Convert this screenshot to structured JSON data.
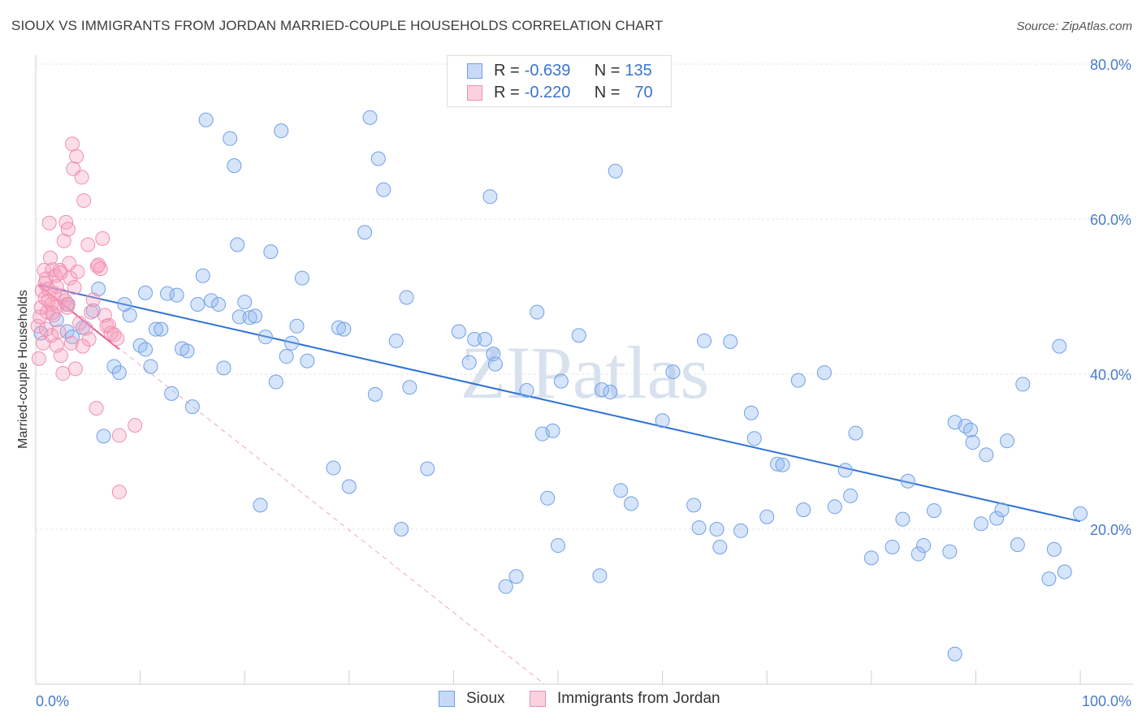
{
  "title": "SIOUX VS IMMIGRANTS FROM JORDAN MARRIED-COUPLE HOUSEHOLDS CORRELATION CHART",
  "source": "Source: ZipAtlas.com",
  "watermark": "ZIPatlas",
  "colors": {
    "sioux": "#6fa0e8",
    "jordan": "#f08fb0",
    "sioux_line": "#2f72d4",
    "jordan_line": "#e8608f",
    "tick_text": "#4a7bc8"
  },
  "legend": {
    "rows": [
      {
        "r_label": "R =",
        "r_value": "-0.639",
        "n_label": "N =",
        "n_value": "135"
      },
      {
        "r_label": "R =",
        "r_value": "-0.220",
        "n_label": "N =",
        "n_value": "70"
      }
    ]
  },
  "bottom_legend": {
    "sioux": "Sioux",
    "jordan": "Immigrants from Jordan"
  },
  "chart_data": {
    "type": "scatter",
    "xlabel": "",
    "ylabel": "Married-couple Households",
    "xlim": [
      0,
      100
    ],
    "ylim": [
      0,
      83
    ],
    "x_tick_labels": [
      "0.0%",
      "100.0%"
    ],
    "y_ticks": [
      20,
      40,
      60,
      80
    ],
    "y_tick_labels": [
      "20.0%",
      "40.0%",
      "60.0%",
      "80.0%"
    ],
    "grid": true,
    "series": [
      {
        "name": "Sioux",
        "r": -0.639,
        "n": 135,
        "trend": {
          "x": [
            0.3,
            100
          ],
          "y": [
            51.5,
            21.0
          ]
        },
        "points": [
          [
            0.5,
            45.3
          ],
          [
            2,
            47
          ],
          [
            3,
            45.5
          ],
          [
            3.5,
            44.8
          ],
          [
            4.5,
            46
          ],
          [
            3,
            49
          ],
          [
            5.5,
            48.2
          ],
          [
            6,
            51
          ],
          [
            6.5,
            32
          ],
          [
            7.5,
            41
          ],
          [
            8,
            40.2
          ],
          [
            8.5,
            49
          ],
          [
            9,
            47.6
          ],
          [
            10,
            43.7
          ],
          [
            10.5,
            43.2
          ],
          [
            11,
            41
          ],
          [
            10.5,
            50.5
          ],
          [
            11.5,
            45.8
          ],
          [
            12,
            45.8
          ],
          [
            12.6,
            50.4
          ],
          [
            13,
            37.5
          ],
          [
            13.5,
            50.2
          ],
          [
            14,
            43.3
          ],
          [
            14.5,
            43
          ],
          [
            15,
            35.8
          ],
          [
            15.5,
            49
          ],
          [
            16,
            52.7
          ],
          [
            16.3,
            72.8
          ],
          [
            16.8,
            49.5
          ],
          [
            17.5,
            49
          ],
          [
            18,
            40.8
          ],
          [
            18.6,
            70.4
          ],
          [
            19,
            66.9
          ],
          [
            19.3,
            56.7
          ],
          [
            19.5,
            47.4
          ],
          [
            20,
            49.3
          ],
          [
            20.5,
            47.3
          ],
          [
            21,
            47.5
          ],
          [
            21.5,
            23.1
          ],
          [
            22,
            44.8
          ],
          [
            22.5,
            55.8
          ],
          [
            23,
            39
          ],
          [
            23.5,
            71.4
          ],
          [
            24,
            42.3
          ],
          [
            24.5,
            44
          ],
          [
            25,
            46.2
          ],
          [
            25.5,
            52.4
          ],
          [
            26,
            41.7
          ],
          [
            28.5,
            27.9
          ],
          [
            29,
            46
          ],
          [
            29.5,
            45.8
          ],
          [
            30,
            25.5
          ],
          [
            31.5,
            58.3
          ],
          [
            32,
            73.1
          ],
          [
            32.5,
            37.4
          ],
          [
            32.8,
            67.8
          ],
          [
            33.3,
            63.8
          ],
          [
            34.5,
            44.3
          ],
          [
            35,
            20
          ],
          [
            35.5,
            49.9
          ],
          [
            35.8,
            38.3
          ],
          [
            37.5,
            27.8
          ],
          [
            40.5,
            45.5
          ],
          [
            41.5,
            41.5
          ],
          [
            42,
            44.5
          ],
          [
            43,
            44.5
          ],
          [
            43.5,
            62.9
          ],
          [
            43.8,
            42.6
          ],
          [
            44,
            41.3
          ],
          [
            45,
            12.6
          ],
          [
            46,
            13.9
          ],
          [
            47,
            37.9
          ],
          [
            48,
            48
          ],
          [
            48.5,
            32.3
          ],
          [
            49,
            24
          ],
          [
            49.5,
            32.7
          ],
          [
            50,
            17.9
          ],
          [
            50.3,
            39.1
          ],
          [
            52,
            45
          ],
          [
            54,
            14
          ],
          [
            54.2,
            38
          ],
          [
            55,
            37.7
          ],
          [
            55.5,
            66.2
          ],
          [
            56,
            25
          ],
          [
            57,
            23.3
          ],
          [
            60,
            34
          ],
          [
            61,
            40.3
          ],
          [
            63,
            23.1
          ],
          [
            63.5,
            20.2
          ],
          [
            64,
            44.3
          ],
          [
            65.2,
            20
          ],
          [
            65.5,
            17.7
          ],
          [
            66.5,
            44.2
          ],
          [
            67.5,
            19.8
          ],
          [
            68.5,
            35
          ],
          [
            68.8,
            31.7
          ],
          [
            70,
            21.6
          ],
          [
            71,
            28.4
          ],
          [
            71.5,
            28.3
          ],
          [
            73,
            39.2
          ],
          [
            73.5,
            22.5
          ],
          [
            75.5,
            40.2
          ],
          [
            76.5,
            22.9
          ],
          [
            77.5,
            27.6
          ],
          [
            78,
            24.3
          ],
          [
            78.5,
            32.4
          ],
          [
            80,
            16.3
          ],
          [
            82,
            17.7
          ],
          [
            83,
            21.3
          ],
          [
            83.5,
            26.2
          ],
          [
            84.5,
            16.8
          ],
          [
            85,
            17.9
          ],
          [
            86,
            22.4
          ],
          [
            87.5,
            17.1
          ],
          [
            88,
            3.9
          ],
          [
            88,
            33.8
          ],
          [
            89,
            33.3
          ],
          [
            89.5,
            32.8
          ],
          [
            89.7,
            31.2
          ],
          [
            90.5,
            20.7
          ],
          [
            91,
            29.6
          ],
          [
            92,
            21.4
          ],
          [
            92.5,
            22.5
          ],
          [
            93,
            31.4
          ],
          [
            94,
            18
          ],
          [
            94.5,
            38.7
          ],
          [
            97,
            13.6
          ],
          [
            97.5,
            17.4
          ],
          [
            98,
            43.6
          ],
          [
            98.5,
            14.5
          ],
          [
            100,
            22
          ]
        ]
      },
      {
        "name": "Immigrants from Jordan",
        "r": -0.22,
        "n": 70,
        "trend": {
          "x": [
            0.3,
            8
          ],
          "y": [
            51.5,
            43.2
          ]
        },
        "trend_dashed": {
          "x": [
            0.3,
            48.7
          ],
          "y": [
            51.5,
            0
          ]
        },
        "points": [
          [
            0.2,
            46.2
          ],
          [
            0.3,
            42
          ],
          [
            0.4,
            47.4
          ],
          [
            0.5,
            48.6
          ],
          [
            0.6,
            50.8
          ],
          [
            0.7,
            44
          ],
          [
            0.8,
            53.4
          ],
          [
            0.9,
            49.8
          ],
          [
            1,
            52.3
          ],
          [
            1,
            45.8
          ],
          [
            1.1,
            48
          ],
          [
            1.2,
            51
          ],
          [
            1.3,
            59.5
          ],
          [
            1.4,
            55
          ],
          [
            1.5,
            49
          ],
          [
            1.6,
            53.5
          ],
          [
            1.7,
            47.6
          ],
          [
            1.8,
            50.4
          ],
          [
            1.9,
            52.7
          ],
          [
            2,
            51.3
          ],
          [
            2.1,
            48.8
          ],
          [
            2.2,
            45.5
          ],
          [
            2.3,
            53.4
          ],
          [
            2.4,
            42.4
          ],
          [
            2.5,
            50.1
          ],
          [
            2.6,
            40.1
          ],
          [
            2.7,
            57.2
          ],
          [
            2.8,
            49.5
          ],
          [
            2.9,
            59.6
          ],
          [
            3,
            48.6
          ],
          [
            3.1,
            58.7
          ],
          [
            3.2,
            54.3
          ],
          [
            3.3,
            52.4
          ],
          [
            3.4,
            44
          ],
          [
            3.5,
            69.7
          ],
          [
            3.6,
            66.5
          ],
          [
            3.7,
            51.2
          ],
          [
            3.8,
            40.7
          ],
          [
            3.9,
            68.1
          ],
          [
            4,
            53.2
          ],
          [
            4.2,
            46.6
          ],
          [
            4.4,
            65.4
          ],
          [
            4.6,
            62.4
          ],
          [
            4.8,
            45.9
          ],
          [
            5,
            56.7
          ],
          [
            5.1,
            44.5
          ],
          [
            5.3,
            48
          ],
          [
            5.5,
            49.6
          ],
          [
            5.8,
            35.6
          ],
          [
            5.9,
            53.9
          ],
          [
            6,
            54.1
          ],
          [
            6.2,
            53.6
          ],
          [
            6.4,
            57.5
          ],
          [
            6.6,
            47.6
          ],
          [
            6.8,
            46.2
          ],
          [
            7,
            46.3
          ],
          [
            7.2,
            45.3
          ],
          [
            4.5,
            43.6
          ],
          [
            7.5,
            45.1
          ],
          [
            7.8,
            44.6
          ],
          [
            8,
            24.8
          ],
          [
            8,
            32.1
          ],
          [
            9.5,
            33.4
          ],
          [
            1.5,
            45
          ],
          [
            2,
            43.7
          ],
          [
            1.2,
            49.5
          ],
          [
            2.4,
            53.1
          ],
          [
            3.1,
            49
          ],
          [
            1.6,
            47.9
          ],
          [
            0.9,
            51.7
          ]
        ]
      }
    ]
  }
}
